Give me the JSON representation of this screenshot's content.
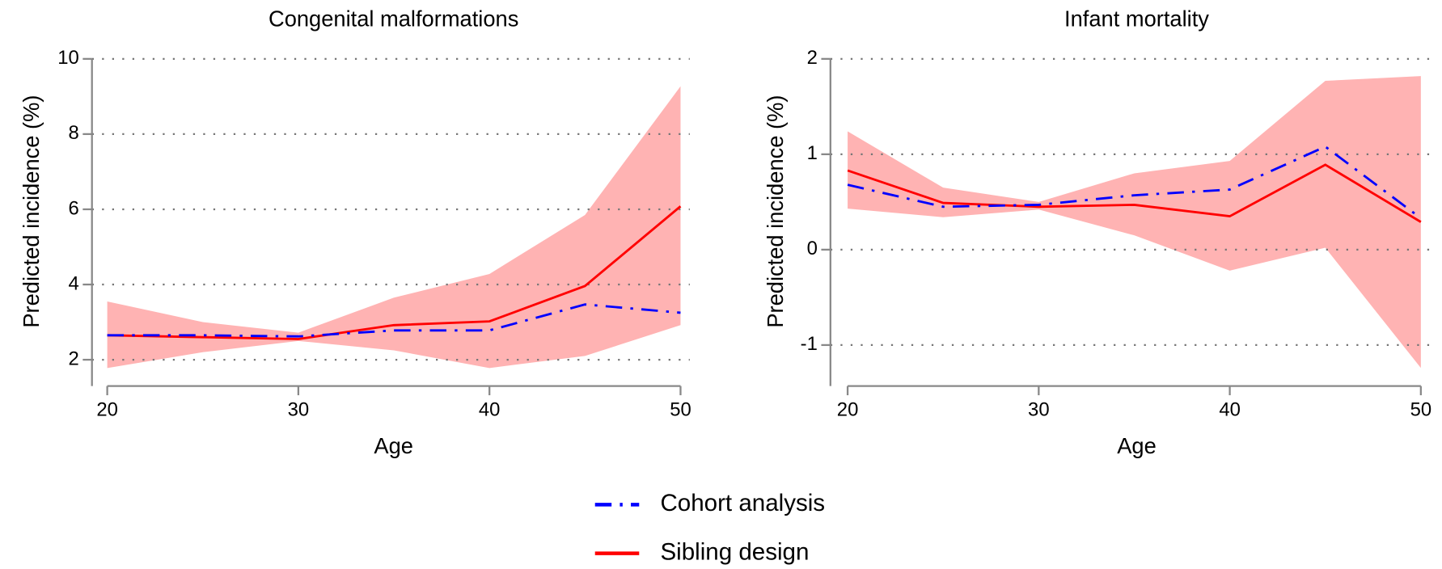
{
  "chart_data": [
    {
      "type": "line",
      "title": "Congenital malformations",
      "xlabel": "Age",
      "ylabel": "Predicted incidence (%)",
      "x": [
        20,
        25,
        30,
        35,
        40,
        45,
        50
      ],
      "series": [
        {
          "name": "Cohort analysis",
          "color": "#0000ff",
          "values": [
            2.65,
            2.65,
            2.62,
            2.78,
            2.78,
            3.47,
            3.25
          ]
        },
        {
          "name": "Sibling design",
          "color": "#ff0000",
          "values": [
            2.65,
            2.6,
            2.55,
            2.92,
            3.02,
            3.96,
            6.08
          ],
          "lower": [
            1.78,
            2.2,
            2.5,
            2.25,
            1.78,
            2.1,
            2.92
          ],
          "upper": [
            3.55,
            3.0,
            2.72,
            3.65,
            4.28,
            5.85,
            9.27
          ],
          "band_color": "#ffb3b3"
        }
      ],
      "xlim": [
        19.2,
        50
      ],
      "ylim": [
        1.3,
        10
      ],
      "xticks": [
        20,
        30,
        40,
        50
      ],
      "yticks": [
        2,
        4,
        6,
        8,
        10
      ],
      "grid": true
    },
    {
      "type": "line",
      "title": "Infant mortality",
      "xlabel": "Age",
      "ylabel": "Predicted incidence (%)",
      "x": [
        20,
        25,
        30,
        35,
        40,
        45,
        50
      ],
      "series": [
        {
          "name": "Cohort analysis",
          "color": "#0000ff",
          "values": [
            0.68,
            0.45,
            0.47,
            0.57,
            0.63,
            1.08,
            0.33
          ]
        },
        {
          "name": "Sibling design",
          "color": "#ff0000",
          "values": [
            0.83,
            0.49,
            0.45,
            0.47,
            0.35,
            0.89,
            0.29
          ],
          "lower": [
            0.43,
            0.34,
            0.42,
            0.15,
            -0.22,
            0.02,
            -1.24
          ],
          "upper": [
            1.24,
            0.65,
            0.5,
            0.8,
            0.93,
            1.77,
            1.82
          ],
          "band_color": "#ffb3b3"
        }
      ],
      "xlim": [
        19.1,
        50
      ],
      "ylim": [
        -1.43,
        2
      ],
      "xticks": [
        20,
        30,
        40,
        50
      ],
      "yticks": [
        -1,
        0,
        1,
        2
      ],
      "grid": true
    }
  ]
}
